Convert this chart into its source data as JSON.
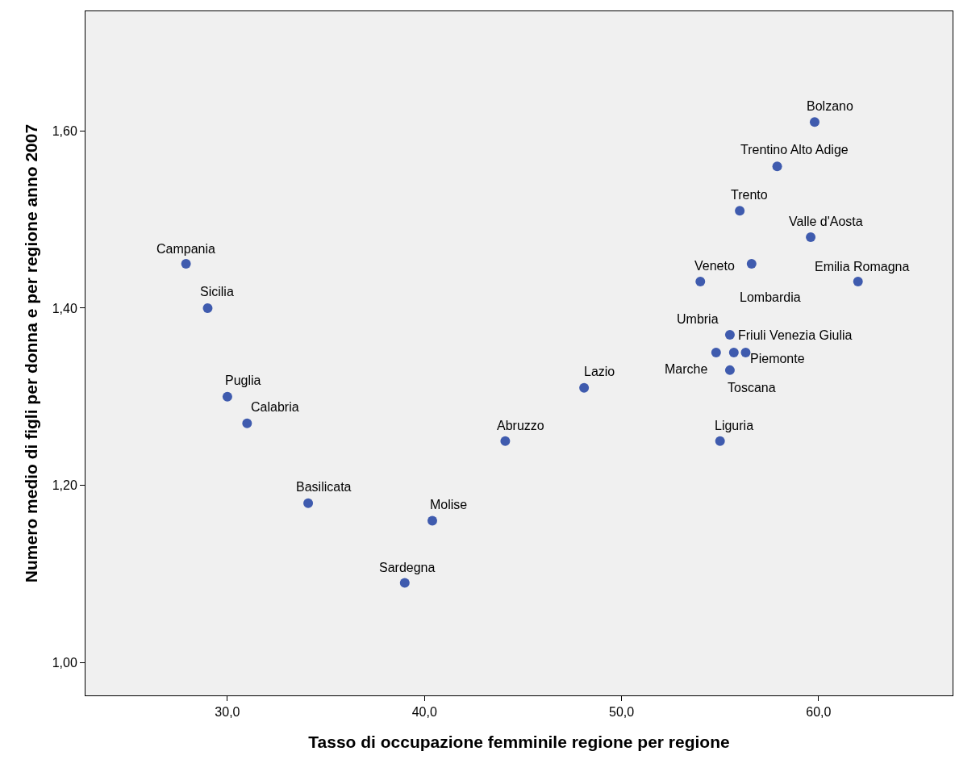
{
  "chart_data": {
    "type": "scatter",
    "xlabel": "Tasso di occupazione femminile regione per regione",
    "ylabel": "Numero medio di figli per donna e per regione anno 2007",
    "x": [
      27.9,
      29.0,
      30.0,
      31.0,
      34.1,
      39.0,
      40.4,
      44.1,
      48.1,
      55.0,
      54.0,
      56.6,
      55.5,
      54.8,
      55.7,
      56.3,
      55.5,
      56.0,
      57.9,
      59.8,
      59.6,
      62.0
    ],
    "series": [
      {
        "color": "#3f5bae",
        "values": [
          1.45,
          1.4,
          1.3,
          1.27,
          1.18,
          1.09,
          1.16,
          1.25,
          1.31,
          1.25,
          1.43,
          1.45,
          1.37,
          1.35,
          1.35,
          1.35,
          1.33,
          1.51,
          1.56,
          1.61,
          1.48,
          1.43
        ]
      }
    ],
    "annotations": [
      {
        "text": "Campania",
        "x": 27.9,
        "y": 1.45
      },
      {
        "text": "Sicilia",
        "x": 29.0,
        "y": 1.4
      },
      {
        "text": "Puglia",
        "x": 30.0,
        "y": 1.3
      },
      {
        "text": "Calabria",
        "x": 31.0,
        "y": 1.27
      },
      {
        "text": "Basilicata",
        "x": 34.1,
        "y": 1.18
      },
      {
        "text": "Sardegna",
        "x": 39.0,
        "y": 1.09
      },
      {
        "text": "Molise",
        "x": 40.4,
        "y": 1.16
      },
      {
        "text": "Abruzzo",
        "x": 44.1,
        "y": 1.25
      },
      {
        "text": "Lazio",
        "x": 48.1,
        "y": 1.31
      },
      {
        "text": "Liguria",
        "x": 55.0,
        "y": 1.25
      },
      {
        "text": "Veneto",
        "x": 54.0,
        "y": 1.43
      },
      {
        "text": "Lombardia",
        "x": 56.6,
        "y": 1.45
      },
      {
        "text": "Umbria",
        "x": 55.5,
        "y": 1.37
      },
      {
        "text": "Marche",
        "x": 54.8,
        "y": 1.35
      },
      {
        "text": "Friuli Venezia Giulia",
        "x": 55.7,
        "y": 1.35
      },
      {
        "text": "Piemonte",
        "x": 56.3,
        "y": 1.35
      },
      {
        "text": "Toscana",
        "x": 55.5,
        "y": 1.33
      },
      {
        "text": "Trento",
        "x": 56.0,
        "y": 1.51
      },
      {
        "text": "Trentino Alto Adige",
        "x": 57.9,
        "y": 1.56
      },
      {
        "text": "Bolzano",
        "x": 59.8,
        "y": 1.61
      },
      {
        "text": "Valle d'Aosta",
        "x": 59.6,
        "y": 1.48
      },
      {
        "text": "Emilia Romagna",
        "x": 62.0,
        "y": 1.43
      }
    ],
    "xlim": [
      22.8,
      66.8
    ],
    "xticks": [
      {
        "value": 30,
        "label": "30,0"
      },
      {
        "value": 40,
        "label": "40,0"
      },
      {
        "value": 50,
        "label": "50,0"
      },
      {
        "value": 60,
        "label": "60,0"
      }
    ],
    "ylim": [
      0.963,
      1.735
    ],
    "yticks": [
      {
        "value": 1.0,
        "label": "1,00"
      },
      {
        "value": 1.2,
        "label": "1,20"
      },
      {
        "value": 1.4,
        "label": "1,40"
      },
      {
        "value": 1.6,
        "label": "1,60"
      }
    ],
    "grid": false,
    "marker": "circle"
  }
}
